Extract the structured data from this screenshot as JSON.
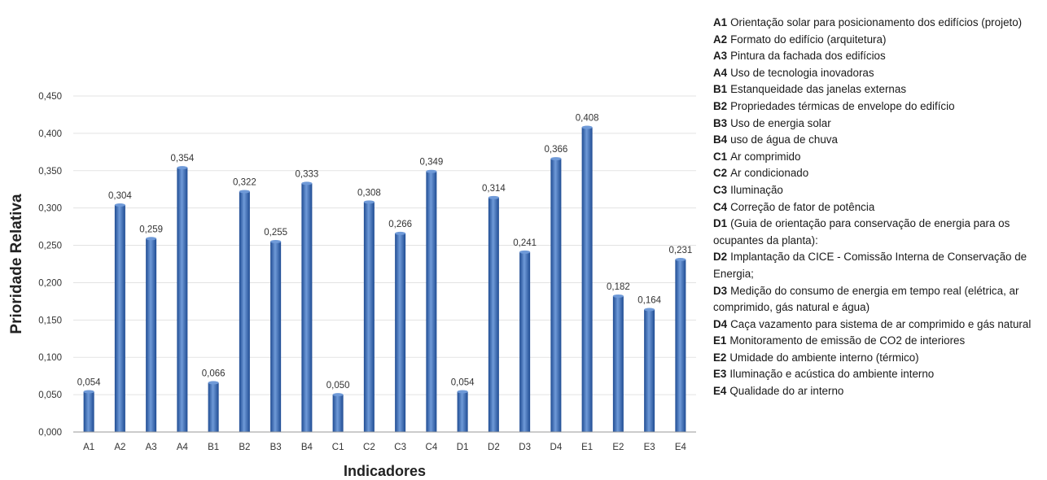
{
  "chart_data": {
    "type": "bar",
    "categories": [
      "A1",
      "A2",
      "A3",
      "A4",
      "B1",
      "B2",
      "B3",
      "B4",
      "C1",
      "C2",
      "C3",
      "C4",
      "D1",
      "D2",
      "D3",
      "D4",
      "E1",
      "E2",
      "E3",
      "E4"
    ],
    "values": [
      0.054,
      0.304,
      0.259,
      0.354,
      0.066,
      0.322,
      0.255,
      0.333,
      0.05,
      0.308,
      0.266,
      0.349,
      0.054,
      0.314,
      0.241,
      0.366,
      0.408,
      0.182,
      0.164,
      0.231
    ],
    "data_labels": [
      "0,054",
      "0,304",
      "0,259",
      "0,354",
      "0,066",
      "0,322",
      "0,255",
      "0,333",
      "0,050",
      "0,308",
      "0,266",
      "0,349",
      "0,054",
      "0,314",
      "0,241",
      "0,366",
      "0,408",
      "0,182",
      "0,164",
      "0,231"
    ],
    "xlabel": "Indicadores",
    "ylabel": "Prioridade Relativa",
    "ylim": [
      0,
      0.45
    ],
    "yticks": [
      0,
      0.05,
      0.1,
      0.15,
      0.2,
      0.25,
      0.3,
      0.35,
      0.4,
      0.45
    ],
    "ytick_labels": [
      "0,000",
      "0,050",
      "0,100",
      "0,150",
      "0,200",
      "0,250",
      "0,300",
      "0,350",
      "0,400",
      "0,450"
    ],
    "grid": true,
    "bar_color": "#3a6fbf",
    "bar_color_light": "#6f9ad8",
    "bar_color_dark": "#1f4c93"
  },
  "legend": [
    {
      "code": "A1",
      "text": "Orientação solar para posicionamento dos edifícios (projeto)"
    },
    {
      "code": "A2",
      "text": "Formato do edifício (arquitetura)"
    },
    {
      "code": "A3",
      "text": "Pintura da fachada dos edifícios"
    },
    {
      "code": "A4",
      "text": "Uso de tecnologia inovadoras"
    },
    {
      "code": "B1",
      "text": "Estanqueidade das janelas externas"
    },
    {
      "code": "B2",
      "text": "Propriedades térmicas de envelope do edifício"
    },
    {
      "code": "B3",
      "text": "Uso de energia solar"
    },
    {
      "code": "B4",
      "text": "uso de água de chuva"
    },
    {
      "code": "C1",
      "text": "Ar comprimido"
    },
    {
      "code": "C2",
      "text": "Ar condicionado"
    },
    {
      "code": "C3",
      "text": "Iluminação"
    },
    {
      "code": "C4",
      "text": "Correção de fator de potência"
    },
    {
      "code": "D1",
      "text": "(Guia de orientação para conservação de energia para os ocupantes da planta):"
    },
    {
      "code": "D2",
      "text": "Implantação da CICE - Comissão Interna de Conservação de Energia;"
    },
    {
      "code": "D3",
      "text": "Medição do consumo de energia em tempo real (elétrica, ar comprimido, gás natural e água)"
    },
    {
      "code": "D4",
      "text": "Caça vazamento para sistema de ar comprimido e gás natural"
    },
    {
      "code": "E1",
      "text": "Monitoramento de emissão de CO2 de interiores"
    },
    {
      "code": "E2",
      "text": "Umidade do ambiente interno (térmico)"
    },
    {
      "code": "E3",
      "text": "Iluminação e acústica do ambiente interno"
    },
    {
      "code": "E4",
      "text": "Qualidade do ar interno"
    }
  ]
}
